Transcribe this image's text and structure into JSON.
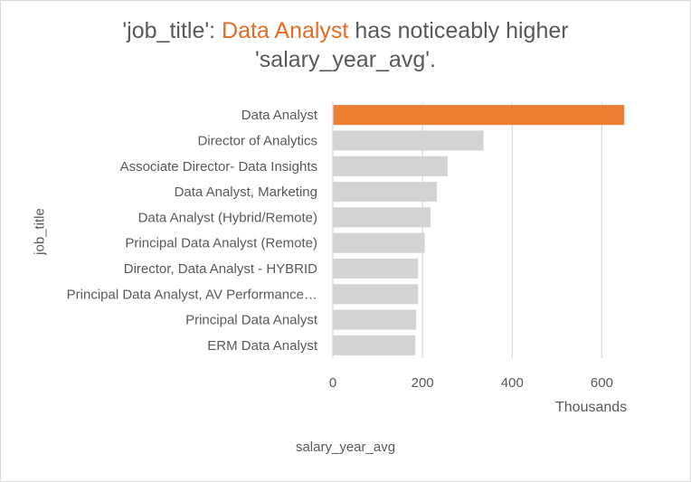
{
  "chart_data": {
    "type": "bar",
    "orientation": "horizontal",
    "title_parts": [
      "'job_title': ",
      "Data Analyst",
      " has noticeably higher",
      "'salary_year_avg'."
    ],
    "xlabel": "salary_year_avg",
    "ylabel": "job_title",
    "x_units_label": "Thousands",
    "xlim": [
      0,
      700
    ],
    "x_ticks": [
      0,
      200,
      400,
      600
    ],
    "grid": true,
    "highlight_color": "#ED7D31",
    "bar_color": "#D3D3D3",
    "categories": [
      "Data Analyst",
      "Director of Analytics",
      "Associate Director- Data Insights",
      "Data Analyst, Marketing",
      "Data Analyst (Hybrid/Remote)",
      "Principal Data Analyst (Remote)",
      "Director, Data Analyst - HYBRID",
      "Principal Data Analyst, AV Performance…",
      "Principal Data Analyst",
      "ERM Data Analyst"
    ],
    "values": [
      650,
      336,
      256,
      232,
      218,
      205,
      190,
      190,
      186,
      184
    ],
    "highlight_index": 0
  }
}
